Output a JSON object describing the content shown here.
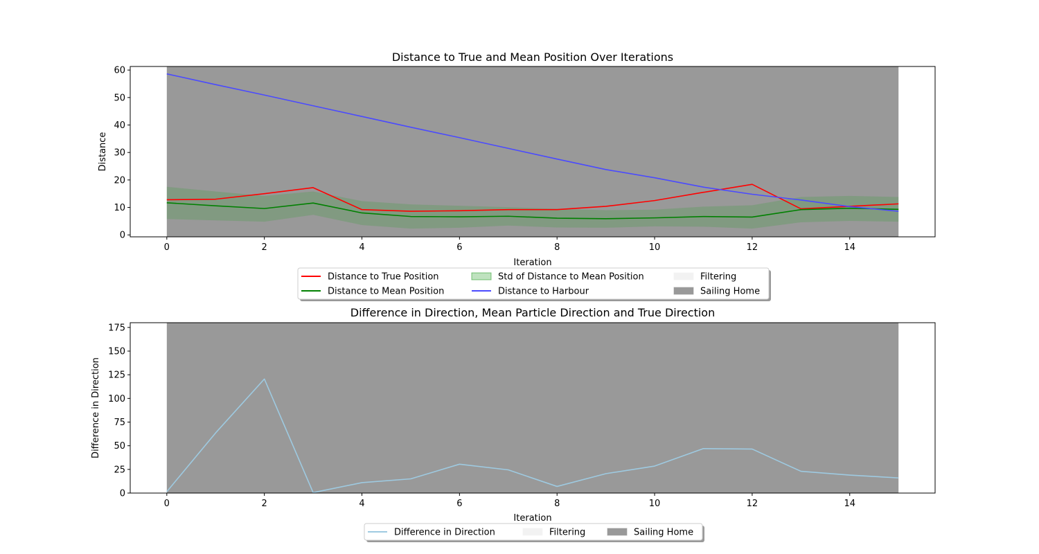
{
  "chart_data": [
    {
      "type": "line",
      "title": "Distance to True and Mean Position Over Iterations",
      "xlabel": "Iteration",
      "ylabel": "Distance",
      "xlim": [
        -0.75,
        15.75
      ],
      "ylim": [
        -0.7,
        61.3
      ],
      "xticks": [
        0,
        2,
        4,
        6,
        8,
        10,
        12,
        14
      ],
      "yticks": [
        0,
        10,
        20,
        30,
        40,
        50,
        60
      ],
      "x": [
        0,
        1,
        2,
        3,
        4,
        5,
        6,
        7,
        8,
        9,
        10,
        11,
        12,
        13,
        14,
        15
      ],
      "series": [
        {
          "name": "Distance to True Position",
          "color": "#ff0000",
          "values": [
            12.8,
            13.0,
            15.0,
            17.2,
            9.2,
            8.6,
            8.8,
            9.2,
            9.2,
            10.4,
            12.5,
            15.5,
            18.4,
            9.5,
            10.4,
            11.3
          ]
        },
        {
          "name": "Distance to Mean Position",
          "color": "#008000",
          "values": [
            11.7,
            10.6,
            9.6,
            11.6,
            8.0,
            6.7,
            6.6,
            6.8,
            6.1,
            5.9,
            6.2,
            6.7,
            6.5,
            9.2,
            9.7,
            9.3
          ]
        },
        {
          "name": "Distance to Harbour",
          "color": "#4a4aff",
          "values": [
            58.6,
            54.7,
            50.9,
            47.0,
            43.1,
            39.2,
            35.4,
            31.5,
            27.6,
            23.8,
            20.8,
            17.4,
            14.8,
            12.7,
            10.3,
            8.6
          ]
        }
      ],
      "band": {
        "name": "Std of Distance to Mean Position",
        "color": "#2ca02c",
        "lower": [
          5.8,
          5.3,
          4.8,
          7.3,
          3.6,
          2.3,
          2.6,
          3.4,
          2.7,
          2.6,
          3.1,
          3.0,
          2.3,
          4.6,
          5.1,
          4.8
        ],
        "upper": [
          17.5,
          15.8,
          14.2,
          15.8,
          12.3,
          11.1,
          10.6,
          10.1,
          9.5,
          9.0,
          9.2,
          10.3,
          10.8,
          13.8,
          14.2,
          13.8
        ]
      },
      "regions": [
        {
          "name": "Filtering",
          "color": "#f2f2f2",
          "x": [
            -0.75,
            -0.75
          ]
        },
        {
          "name": "Sailing Home",
          "color": "#999999",
          "x": [
            0,
            15
          ]
        }
      ],
      "legend": {
        "position": "bottom-center",
        "columns": 3
      }
    },
    {
      "type": "line",
      "title": "Difference in Direction, Mean Particle Direction and True Direction",
      "xlabel": "Iteration",
      "ylabel": "Difference in Direction",
      "xlim": [
        -0.75,
        15.75
      ],
      "ylim": [
        0,
        180
      ],
      "xticks": [
        0,
        2,
        4,
        6,
        8,
        10,
        12,
        14
      ],
      "yticks": [
        0,
        25,
        50,
        75,
        100,
        125,
        150,
        175
      ],
      "x": [
        0,
        1,
        2,
        3,
        4,
        5,
        6,
        7,
        8,
        9,
        10,
        11,
        12,
        13,
        14,
        15
      ],
      "series": [
        {
          "name": "Difference in Direction",
          "color": "#9ecae1",
          "values": [
            1.5,
            63.5,
            120.5,
            0.5,
            11.0,
            15.0,
            30.5,
            24.5,
            7.0,
            20.5,
            28.5,
            47.0,
            46.5,
            23.0,
            19.0,
            16.0
          ]
        }
      ],
      "regions": [
        {
          "name": "Filtering",
          "color": "#f2f2f2",
          "x": [
            -0.75,
            -0.75
          ]
        },
        {
          "name": "Sailing Home",
          "color": "#999999",
          "x": [
            0,
            15
          ]
        }
      ],
      "legend": {
        "position": "bottom-center",
        "columns": 3
      }
    }
  ]
}
